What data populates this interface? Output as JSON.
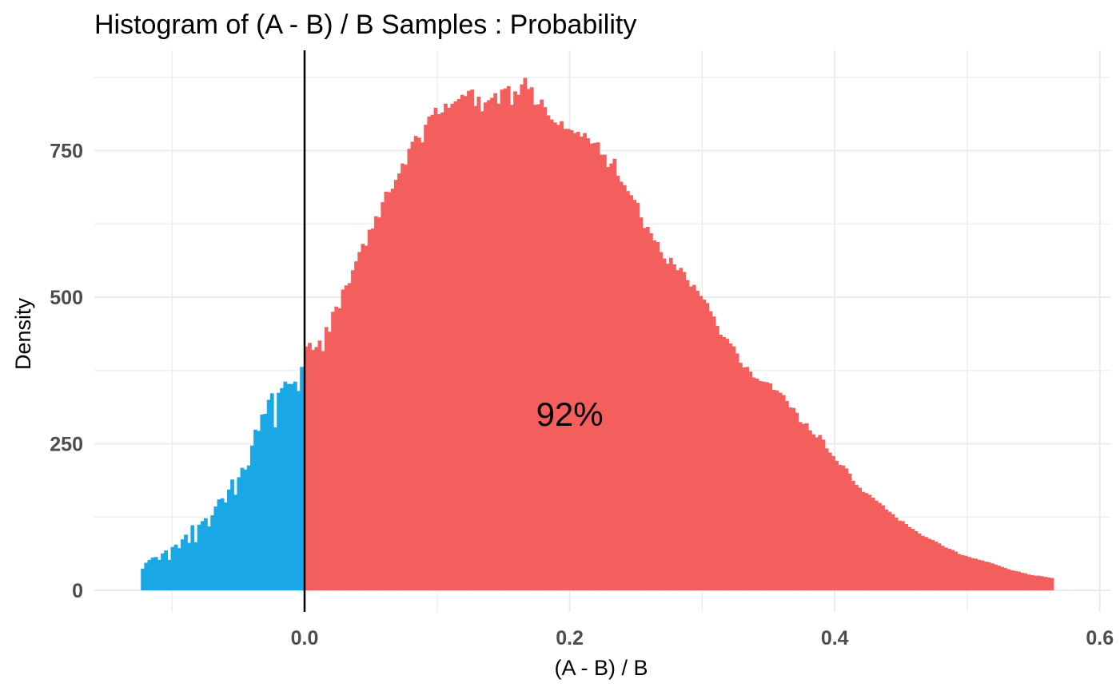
{
  "chart_data": {
    "type": "bar",
    "title": "Histogram of (A - B) / B Samples : Probability",
    "xlabel": "(A - B) / B",
    "ylabel": "Density",
    "xlim": [
      -0.1,
      0.6
    ],
    "ylim": [
      0,
      875
    ],
    "x_ticks": [
      0.0,
      0.2,
      0.4,
      0.6
    ],
    "x_tick_labels": [
      "0.0",
      "0.2",
      "0.4",
      "0.6"
    ],
    "y_ticks": [
      0,
      250,
      500,
      750
    ],
    "y_tick_labels": [
      "0",
      "250",
      "500",
      "750"
    ],
    "grid": true,
    "reference_line": {
      "x": 0.0,
      "color": "#000000"
    },
    "annotation": {
      "text": "92%",
      "x": 0.2,
      "y": 300
    },
    "bin_start": -0.1235,
    "bin_width": 0.0025,
    "series": [
      {
        "fill_color": "#19a8e5",
        "range": [
          -0.1235,
          0.0
        ],
        "values": [
          37,
          47,
          52,
          56,
          57,
          52,
          63,
          68,
          52,
          74,
          78,
          72,
          87,
          95,
          81,
          111,
          82,
          112,
          118,
          123,
          109,
          128,
          143,
          155,
          157,
          150,
          172,
          189,
          163,
          193,
          209,
          206,
          213,
          247,
          274,
          272,
          300,
          301,
          325,
          336,
          278,
          337,
          345,
          356,
          352,
          352,
          356,
          340,
          381,
          339
        ]
      },
      {
        "fill_color": "#f35f5c",
        "range": [
          0.0,
          0.57
        ],
        "values": [
          416,
          422,
          410,
          415,
          426,
          408,
          449,
          441,
          475,
          484,
          481,
          513,
          520,
          524,
          546,
          561,
          577,
          591,
          588,
          615,
          617,
          638,
          636,
          662,
          680,
          679,
          685,
          700,
          711,
          728,
          726,
          753,
          765,
          775,
          772,
          764,
          794,
          808,
          811,
          823,
          812,
          815,
          830,
          823,
          830,
          834,
          838,
          845,
          843,
          852,
          854,
          826,
          842,
          817,
          832,
          836,
          840,
          848,
          830,
          854,
          856,
          860,
          828,
          851,
          845,
          863,
          874,
          855,
          858,
          828,
          829,
          837,
          824,
          810,
          803,
          798,
          794,
          800,
          787,
          787,
          785,
          780,
          782,
          774,
          780,
          771,
          762,
          763,
          764,
          743,
          743,
          722,
          728,
          736,
          707,
          697,
          691,
          681,
          674,
          666,
          661,
          636,
          618,
          620,
          609,
          597,
          594,
          577,
          566,
          557,
          567,
          556,
          546,
          550,
          543,
          529,
          518,
          521,
          511,
          502,
          496,
          490,
          476,
          467,
          451,
          436,
          432,
          429,
          421,
          416,
          404,
          388,
          380,
          381,
          373,
          363,
          361,
          357,
          356,
          355,
          353,
          342,
          341,
          337,
          333,
          323,
          312,
          311,
          303,
          287,
          284,
          285,
          273,
          266,
          261,
          265,
          257,
          242,
          235,
          229,
          221,
          214,
          213,
          208,
          199,
          187,
          180,
          175,
          168,
          166,
          163,
          158,
          153,
          149,
          145,
          138,
          134,
          130,
          124,
          119,
          118,
          113,
          108,
          105,
          101,
          97,
          93,
          91,
          88,
          86,
          83,
          80,
          76,
          73,
          71,
          69,
          66,
          62,
          60,
          59,
          57,
          55,
          54,
          52,
          51,
          49,
          48,
          46,
          44,
          42,
          40,
          38,
          36,
          34,
          33,
          32,
          30,
          29,
          27,
          26,
          25,
          25,
          24,
          23,
          22,
          21
        ]
      }
    ]
  }
}
